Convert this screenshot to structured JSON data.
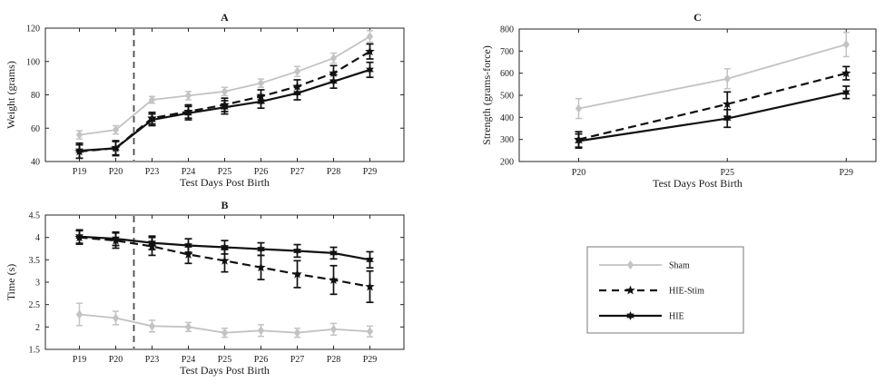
{
  "figure": {
    "background": "#ffffff",
    "axis_color": "#262626",
    "text_color": "#1a1a1a",
    "vline_color": "#4d4d4d",
    "colors": {
      "sham": "#c3c3c3",
      "hie_stim": "#111111",
      "hie": "#111111"
    }
  },
  "chart_data": [
    {
      "id": "A",
      "type": "line",
      "title": "A",
      "xlabel": "Test Days Post Birth",
      "ylabel": "Weight (grams)",
      "categories": [
        "P19",
        "P20",
        "P23",
        "P24",
        "P25",
        "P26",
        "P27",
        "P28",
        "P29"
      ],
      "ylim": [
        40,
        120
      ],
      "yticks": [
        40,
        60,
        80,
        100,
        120
      ],
      "ytick_labels": [
        "40",
        "60",
        "80",
        "100",
        "120"
      ],
      "vline_between": [
        "P20",
        "P23"
      ],
      "grid": false,
      "series": [
        {
          "name": "Sham",
          "style": "sham",
          "values": [
            56,
            59,
            77,
            79.5,
            82,
            87,
            94,
            102,
            115
          ],
          "errors": [
            2.5,
            2.5,
            2,
            2.5,
            2.5,
            2.5,
            3,
            3,
            3.5
          ]
        },
        {
          "name": "HIE-Stim",
          "style": "hie_stim",
          "values": [
            46,
            48,
            66,
            70,
            74,
            79,
            85,
            93,
            106
          ],
          "errors": [
            4,
            4.5,
            3.5,
            4,
            4,
            4,
            4,
            4.5,
            4.5
          ]
        },
        {
          "name": "HIE",
          "style": "hie",
          "values": [
            46.5,
            48,
            65,
            69,
            72.5,
            76,
            81,
            88,
            95
          ],
          "errors": [
            4.5,
            4,
            3.5,
            4,
            4,
            4,
            4,
            4,
            4.5
          ]
        }
      ]
    },
    {
      "id": "B",
      "type": "line",
      "title": "B",
      "xlabel": "Test Days Post Birth",
      "ylabel": "Time (s)",
      "categories": [
        "P19",
        "P20",
        "P23",
        "P24",
        "P25",
        "P26",
        "P27",
        "P28",
        "P29"
      ],
      "ylim": [
        1.5,
        4.5
      ],
      "yticks": [
        1.5,
        2,
        2.5,
        3,
        3.5,
        4,
        4.5
      ],
      "ytick_labels": [
        "1.5",
        "2",
        "2.5",
        "3",
        "3.5",
        "4",
        "4.5"
      ],
      "vline_between": [
        "P20",
        "P23"
      ],
      "grid": false,
      "series": [
        {
          "name": "Sham",
          "style": "sham",
          "values": [
            2.28,
            2.2,
            2.02,
            2.0,
            1.87,
            1.92,
            1.87,
            1.95,
            1.9
          ],
          "errors": [
            0.25,
            0.15,
            0.13,
            0.1,
            0.1,
            0.13,
            0.1,
            0.13,
            0.12
          ]
        },
        {
          "name": "HIE-Stim",
          "style": "hie_stim",
          "values": [
            4.0,
            3.93,
            3.8,
            3.62,
            3.48,
            3.33,
            3.18,
            3.05,
            2.9
          ],
          "errors": [
            0.15,
            0.17,
            0.2,
            0.2,
            0.25,
            0.27,
            0.3,
            0.32,
            0.35
          ]
        },
        {
          "name": "HIE",
          "style": "hie",
          "values": [
            4.02,
            3.97,
            3.88,
            3.82,
            3.78,
            3.74,
            3.7,
            3.65,
            3.5
          ],
          "errors": [
            0.15,
            0.15,
            0.15,
            0.15,
            0.15,
            0.14,
            0.14,
            0.13,
            0.18
          ]
        }
      ]
    },
    {
      "id": "C",
      "type": "line",
      "title": "C",
      "xlabel": "Test Days Post Birth",
      "ylabel": "Strength (grams-force)",
      "categories": [
        "P20",
        "P25",
        "P29"
      ],
      "x_numeric": [
        20,
        25,
        29
      ],
      "xlim": [
        18,
        30
      ],
      "ylim": [
        200,
        800
      ],
      "yticks": [
        200,
        300,
        400,
        500,
        600,
        700,
        800
      ],
      "ytick_labels": [
        "200",
        "300",
        "400",
        "500",
        "600",
        "700",
        "800"
      ],
      "grid": false,
      "series": [
        {
          "name": "Sham",
          "style": "sham",
          "values": [
            440,
            575,
            730
          ],
          "errors": [
            45,
            45,
            55
          ]
        },
        {
          "name": "HIE-Stim",
          "style": "hie_stim",
          "values": [
            300,
            460,
            600
          ],
          "errors": [
            35,
            55,
            30
          ]
        },
        {
          "name": "HIE",
          "style": "hie",
          "values": [
            293,
            395,
            513
          ],
          "errors": [
            32,
            40,
            28
          ]
        }
      ]
    }
  ],
  "legend": {
    "entries": [
      {
        "id": "sham",
        "label": "Sham"
      },
      {
        "id": "hie_stim",
        "label": "HIE-Stim"
      },
      {
        "id": "hie",
        "label": "HIE"
      }
    ]
  }
}
